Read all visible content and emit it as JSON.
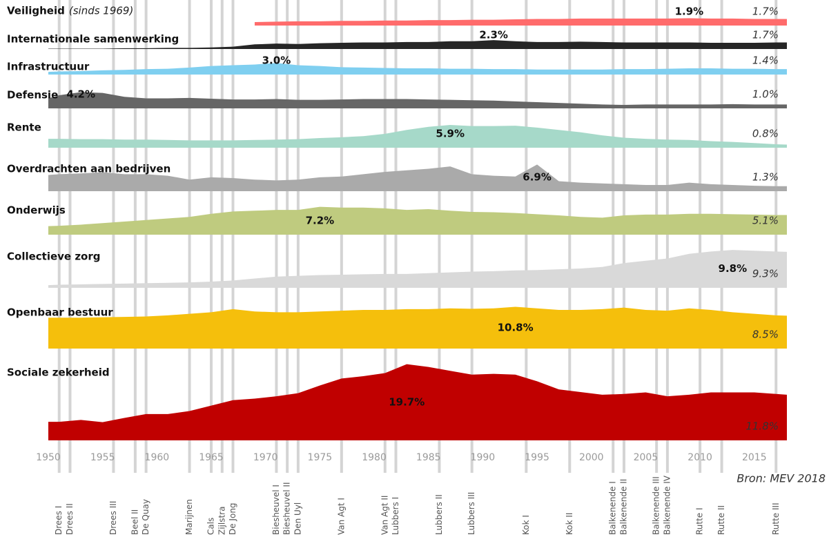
{
  "chart_data": {
    "type": "ridge-area",
    "xlim": [
      1950,
      2018
    ],
    "xticks": [
      1950,
      1955,
      1960,
      1965,
      1970,
      1975,
      1980,
      1985,
      1990,
      1995,
      2000,
      2005,
      2010,
      2015
    ],
    "x": [
      1950,
      1951,
      1953,
      1955,
      1957,
      1959,
      1961,
      1963,
      1965,
      1967,
      1969,
      1971,
      1973,
      1975,
      1977,
      1979,
      1981,
      1983,
      1985,
      1987,
      1989,
      1991,
      1993,
      1995,
      1997,
      1999,
      2001,
      2003,
      2005,
      2007,
      2009,
      2011,
      2013,
      2015,
      2017,
      2018
    ],
    "source": "Bron: MEV 2018",
    "series": [
      {
        "name": "Veiligheid",
        "note": "(sinds 1969)",
        "color": "#ff6b6b",
        "values": [
          null,
          null,
          null,
          null,
          null,
          null,
          null,
          null,
          null,
          null,
          0.9,
          1.0,
          1.1,
          1.1,
          1.2,
          1.2,
          1.3,
          1.3,
          1.4,
          1.4,
          1.5,
          1.5,
          1.6,
          1.7,
          1.7,
          1.8,
          1.8,
          1.8,
          1.8,
          1.8,
          1.9,
          1.8,
          1.8,
          1.7,
          1.7,
          1.7
        ],
        "value_labels": {
          "30": "1.9%",
          "35": "1.7%"
        }
      },
      {
        "name": "Internationale samenwerking",
        "color": "#262626",
        "values": [
          0.1,
          0.1,
          0.1,
          0.1,
          0.2,
          0.2,
          0.3,
          0.3,
          0.4,
          0.6,
          1.2,
          1.4,
          1.3,
          1.5,
          1.6,
          1.7,
          1.7,
          1.8,
          1.8,
          2.0,
          2.0,
          2.3,
          2.0,
          1.8,
          1.8,
          1.9,
          1.8,
          1.7,
          1.7,
          1.7,
          1.7,
          1.6,
          1.6,
          1.6,
          1.7,
          1.7
        ],
        "value_labels": {
          "21": "2.3%",
          "35": "1.7%"
        }
      },
      {
        "name": "Infrastructuur",
        "color": "#7fcff0",
        "values": [
          0.7,
          0.8,
          0.9,
          1.1,
          1.2,
          1.4,
          1.5,
          1.8,
          2.2,
          2.4,
          2.6,
          3.0,
          2.4,
          2.2,
          1.9,
          1.8,
          1.7,
          1.6,
          1.6,
          1.5,
          1.5,
          1.4,
          1.4,
          1.3,
          1.3,
          1.3,
          1.3,
          1.4,
          1.4,
          1.5,
          1.6,
          1.6,
          1.5,
          1.5,
          1.4,
          1.4
        ],
        "value_labels": {
          "11": "3.0%",
          "35": "1.4%"
        }
      },
      {
        "name": "Defensie",
        "color": "#666666",
        "values": [
          2.6,
          3.4,
          4.2,
          4.0,
          3.0,
          2.6,
          2.6,
          2.7,
          2.5,
          2.3,
          2.3,
          2.4,
          2.2,
          2.2,
          2.3,
          2.4,
          2.4,
          2.4,
          2.3,
          2.2,
          2.1,
          2.0,
          1.8,
          1.6,
          1.4,
          1.2,
          1.0,
          0.9,
          1.0,
          1.0,
          1.0,
          1.0,
          1.1,
          1.0,
          1.0,
          1.0
        ],
        "value_labels": {
          "2": "4.2%",
          "35": "1.0%"
        }
      },
      {
        "name": "Rente",
        "color": "#a6d9c9",
        "values": [
          2.3,
          2.3,
          2.2,
          2.2,
          2.1,
          2.1,
          2.0,
          1.9,
          1.9,
          1.9,
          2.0,
          2.1,
          2.2,
          2.5,
          2.7,
          3.0,
          3.6,
          4.6,
          5.4,
          5.9,
          5.6,
          5.6,
          5.7,
          5.2,
          4.6,
          4.0,
          3.2,
          2.6,
          2.3,
          2.1,
          2.0,
          1.7,
          1.5,
          1.2,
          0.9,
          0.8
        ],
        "value_labels": {
          "19": "5.9%",
          "35": "0.8%"
        }
      },
      {
        "name": "Overdrachten aan bedrijven",
        "color": "#aaaaaa",
        "values": [
          4.2,
          4.4,
          4.6,
          4.9,
          4.4,
          4.4,
          4.0,
          3.0,
          3.6,
          3.4,
          3.0,
          2.8,
          3.0,
          3.6,
          3.8,
          4.4,
          5.0,
          5.4,
          5.8,
          6.4,
          4.4,
          4.0,
          3.8,
          6.9,
          2.6,
          2.2,
          2.0,
          1.8,
          1.6,
          1.6,
          2.2,
          1.8,
          1.6,
          1.4,
          1.3,
          1.3
        ],
        "value_labels": {
          "23": "6.9%",
          "35": "1.3%"
        }
      },
      {
        "name": "Onderwijs",
        "color": "#bfcb7f",
        "values": [
          2.2,
          2.3,
          2.6,
          3.0,
          3.4,
          3.8,
          4.2,
          4.6,
          5.4,
          6.0,
          6.2,
          6.4,
          6.4,
          7.2,
          7.0,
          7.0,
          6.8,
          6.4,
          6.6,
          6.2,
          5.9,
          5.8,
          5.6,
          5.3,
          5.0,
          4.6,
          4.4,
          5.0,
          5.2,
          5.2,
          5.4,
          5.4,
          5.3,
          5.2,
          5.1,
          5.1
        ],
        "value_labels": {
          "13": "7.2%",
          "35": "5.1%"
        }
      },
      {
        "name": "Collectieve zorg",
        "color": "#d9d9d9",
        "values": [
          0.7,
          0.8,
          0.9,
          1.0,
          1.1,
          1.2,
          1.3,
          1.4,
          1.6,
          1.9,
          2.4,
          2.9,
          3.1,
          3.3,
          3.4,
          3.5,
          3.6,
          3.6,
          3.8,
          4.0,
          4.2,
          4.3,
          4.5,
          4.6,
          4.8,
          5.0,
          5.4,
          6.4,
          7.0,
          7.6,
          8.8,
          9.4,
          9.8,
          9.6,
          9.4,
          9.3
        ],
        "value_labels": {
          "32": "9.8%",
          "35": "9.3%"
        }
      },
      {
        "name": "Openbaar bestuur",
        "color": "#f5bf0c",
        "values": [
          8.0,
          8.0,
          8.0,
          8.1,
          8.2,
          8.3,
          8.6,
          9.0,
          9.4,
          10.2,
          9.6,
          9.4,
          9.4,
          9.6,
          9.8,
          10.0,
          10.0,
          10.2,
          10.2,
          10.4,
          10.3,
          10.4,
          10.8,
          10.4,
          10.0,
          10.0,
          10.2,
          10.6,
          10.0,
          9.8,
          10.4,
          10.0,
          9.4,
          9.0,
          8.6,
          8.5
        ],
        "value_labels": {
          "22": "10.8%",
          "35": "8.5%"
        }
      },
      {
        "name": "Sociale zekerheid",
        "color": "#c00000",
        "values": [
          4.8,
          4.8,
          5.3,
          4.7,
          5.8,
          6.8,
          6.8,
          7.6,
          9.0,
          10.4,
          10.8,
          11.4,
          12.2,
          14.2,
          16.0,
          16.6,
          17.4,
          19.7,
          19.0,
          18.0,
          17.0,
          17.2,
          17.0,
          15.3,
          13.2,
          12.5,
          11.8,
          12.0,
          12.4,
          11.4,
          11.8,
          12.4,
          12.4,
          12.4,
          12.0,
          11.8
        ],
        "value_labels": {
          "17": "19.7%",
          "35": "11.8%"
        }
      }
    ],
    "cabinets": [
      {
        "name": "Drees I",
        "year": 1951
      },
      {
        "name": "Drees II",
        "year": 1952
      },
      {
        "name": "Drees III",
        "year": 1956
      },
      {
        "name": "Beel II",
        "year": 1958
      },
      {
        "name": "De Quay",
        "year": 1959
      },
      {
        "name": "Marijnen",
        "year": 1963
      },
      {
        "name": "Cals",
        "year": 1965
      },
      {
        "name": "Zijlstra",
        "year": 1966
      },
      {
        "name": "De Jong",
        "year": 1967
      },
      {
        "name": "Biesheuvel I",
        "year": 1971
      },
      {
        "name": "Biesheuvel II",
        "year": 1972
      },
      {
        "name": "Den Uyl",
        "year": 1973
      },
      {
        "name": "Van Agt I",
        "year": 1977
      },
      {
        "name": "Van Agt II",
        "year": 1981
      },
      {
        "name": "Lubbers I",
        "year": 1982
      },
      {
        "name": "Lubbers II",
        "year": 1986
      },
      {
        "name": "Lubbers III",
        "year": 1989
      },
      {
        "name": "Kok I",
        "year": 1994
      },
      {
        "name": "Kok II",
        "year": 1998
      },
      {
        "name": "Balkenende I",
        "year": 2002
      },
      {
        "name": "Balkenende II",
        "year": 2003
      },
      {
        "name": "Balkenende III",
        "year": 2006
      },
      {
        "name": "Balkenende IV",
        "year": 2007
      },
      {
        "name": "Rutte I",
        "year": 2010
      },
      {
        "name": "Rutte II",
        "year": 2012
      },
      {
        "name": "Rutte III",
        "year": 2017
      }
    ]
  }
}
